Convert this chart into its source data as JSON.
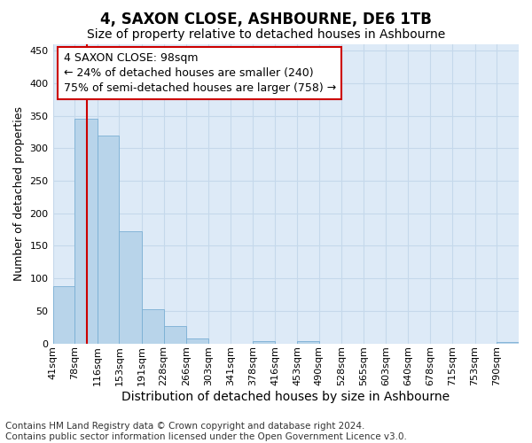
{
  "title": "4, SAXON CLOSE, ASHBOURNE, DE6 1TB",
  "subtitle": "Size of property relative to detached houses in Ashbourne",
  "xlabel": "Distribution of detached houses by size in Ashbourne",
  "ylabel": "Number of detached properties",
  "bar_color": "#b8d4ea",
  "bar_edge_color": "#7aafd4",
  "grid_color": "#c5d8eb",
  "background_color": "#ddeaf7",
  "vline_value": 98,
  "vline_color": "#cc0000",
  "annotation_text": "4 SAXON CLOSE: 98sqm\n← 24% of detached houses are smaller (240)\n75% of semi-detached houses are larger (758) →",
  "annotation_box_color": "white",
  "annotation_box_edge": "#cc0000",
  "categories": [
    "41sqm",
    "78sqm",
    "116sqm",
    "153sqm",
    "191sqm",
    "228sqm",
    "266sqm",
    "303sqm",
    "341sqm",
    "378sqm",
    "416sqm",
    "453sqm",
    "490sqm",
    "528sqm",
    "565sqm",
    "603sqm",
    "640sqm",
    "678sqm",
    "715sqm",
    "753sqm",
    "790sqm"
  ],
  "bin_edges": [
    41,
    78,
    116,
    153,
    191,
    228,
    266,
    303,
    341,
    378,
    416,
    453,
    490,
    528,
    565,
    603,
    640,
    678,
    715,
    753,
    790,
    827
  ],
  "bar_heights": [
    88,
    345,
    320,
    173,
    53,
    26,
    7,
    0,
    0,
    4,
    0,
    4,
    0,
    0,
    0,
    0,
    0,
    0,
    0,
    0,
    2
  ],
  "ylim": [
    0,
    460
  ],
  "yticks": [
    0,
    50,
    100,
    150,
    200,
    250,
    300,
    350,
    400,
    450
  ],
  "footnote": "Contains HM Land Registry data © Crown copyright and database right 2024.\nContains public sector information licensed under the Open Government Licence v3.0.",
  "title_fontsize": 12,
  "subtitle_fontsize": 10,
  "xlabel_fontsize": 10,
  "ylabel_fontsize": 9,
  "tick_fontsize": 8,
  "footnote_fontsize": 7.5,
  "annot_fontsize": 9
}
